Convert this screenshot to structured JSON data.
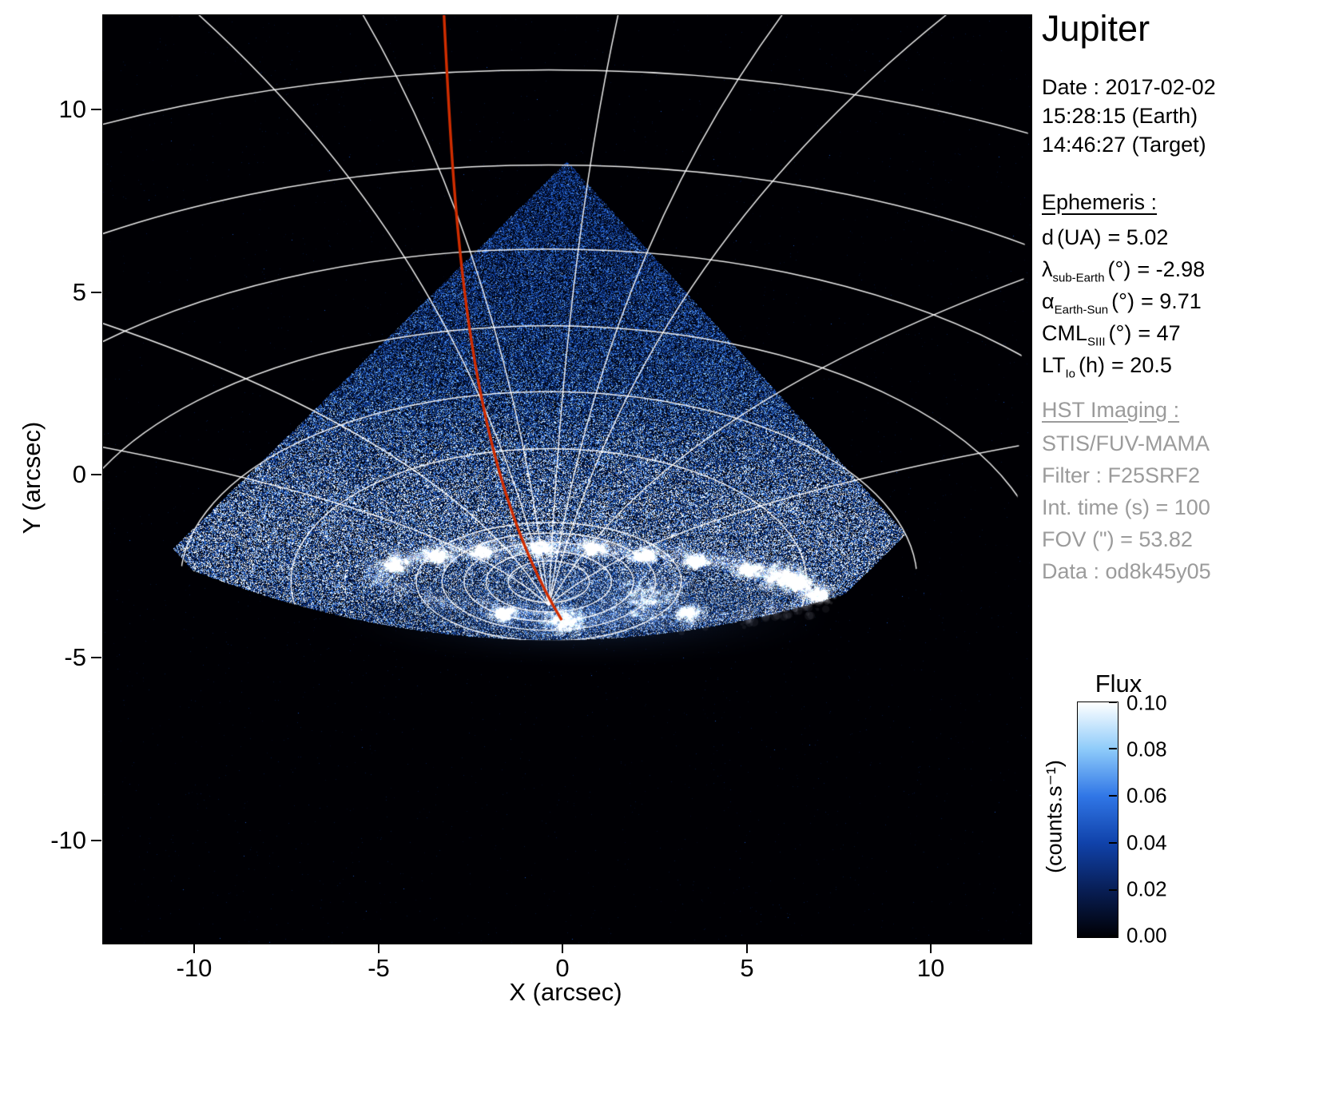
{
  "title": "Jupiter",
  "info": {
    "date_line": "Date : 2017-02-02",
    "time_earth": "15:28:15 (Earth)",
    "time_target": "14:46:27 (Target)",
    "ephemeris_heading": "Ephemeris :",
    "ephemeris": [
      {
        "symbol": "d",
        "sub": "",
        "unit": "(UA)",
        "value": "= 5.02"
      },
      {
        "symbol": "λ",
        "sub": "sub-Earth",
        "unit": "(°)",
        "value": "= -2.98"
      },
      {
        "symbol": "α",
        "sub": "Earth-Sun",
        "unit": "(°)",
        "value": "= 9.71"
      },
      {
        "symbol": "CML",
        "sub": "SIII",
        "unit": "(°)",
        "value": "= 47"
      },
      {
        "symbol": "LT",
        "sub": "Io",
        "unit": "(h)",
        "value": "= 20.5"
      }
    ],
    "hst_heading": "HST Imaging :",
    "hst_lines": [
      "STIS/FUV-MAMA",
      "Filter : F25SRF2",
      "Int. time (s) = 100",
      "FOV (\") = 53.82",
      "Data : od8k45y05"
    ]
  },
  "chart_data": {
    "type": "heatmap",
    "title": "Jupiter",
    "xlabel": "X (arcsec)",
    "ylabel": "Y (arcsec)",
    "xlim": [
      -12.5,
      12.7
    ],
    "ylim": [
      -12.8,
      12.6
    ],
    "x_ticks": [
      "-10",
      "-5",
      "0",
      "5",
      "10"
    ],
    "y_ticks": [
      "10",
      "5",
      "0",
      "-5",
      "-10"
    ],
    "x_tick_values": [
      -10,
      -5,
      0,
      5,
      10
    ],
    "y_tick_values": [
      10,
      5,
      0,
      -5,
      -10
    ],
    "grid": true,
    "legend": false,
    "colorbar": {
      "title": "Flux",
      "unit": "(counts.s⁻¹)",
      "tick_labels": [
        "0.10",
        "0.08",
        "0.06",
        "0.04",
        "0.02",
        "0.00"
      ],
      "vmin": 0.0,
      "vmax": 0.1,
      "cmap": [
        [
          0,
          [
            0,
            0,
            4
          ]
        ],
        [
          0.2,
          [
            8,
            30,
            85
          ]
        ],
        [
          0.4,
          [
            16,
            66,
            170
          ]
        ],
        [
          0.6,
          [
            48,
            118,
            230
          ]
        ],
        [
          0.8,
          [
            142,
            203,
            250
          ]
        ],
        [
          1,
          [
            255,
            255,
            255
          ]
        ]
      ]
    },
    "annotations": {
      "red_track_color": "#d02d00",
      "grid_color": "#ffffff",
      "description": "HST STIS FUV image of Jupiter north polar region: noisy blue diamond-shaped MAMA field of view, bright white auroral oval near the limb, white planetocentric lat/lon grid, red Io flux-tube track"
    },
    "features": {
      "cone": {
        "top": [
          0.1,
          8.6
        ],
        "right": [
          9.3,
          -1.6
        ],
        "bottom": [
          -1.4,
          -12.2
        ],
        "left": [
          -10.6,
          -2.0
        ]
      },
      "limb": {
        "y0": -4.5,
        "x0": -0.3,
        "curv": 0.02
      },
      "aurora": {
        "cx": 0.9,
        "cy": -2.95,
        "rx": 5.9,
        "ry": 0.95,
        "rot": -3
      },
      "clumps": [
        [
          -4.55,
          -2.45
        ],
        [
          -3.4,
          -2.2
        ],
        [
          -2.2,
          -2.1
        ],
        [
          -0.6,
          -2.0
        ],
        [
          0.8,
          -2.0
        ],
        [
          2.2,
          -2.2
        ],
        [
          3.6,
          -2.35
        ],
        [
          5.0,
          -2.6
        ],
        [
          6.4,
          -2.95
        ],
        [
          6.9,
          -3.25
        ],
        [
          2.3,
          -3.3,
          0.45
        ],
        [
          0.0,
          -3.95,
          0.3
        ],
        [
          -1.6,
          -3.8
        ],
        [
          3.4,
          -3.75
        ],
        [
          5.9,
          -2.8,
          0.3
        ]
      ],
      "pole": [
        -0.4,
        -3.55
      ],
      "grid_center": [
        -0.4,
        -2.9
      ],
      "parallels": [
        [
          1.1,
          0.57
        ],
        [
          1.7,
          0.83
        ],
        [
          2.3,
          1.08
        ],
        [
          2.9,
          1.33
        ],
        [
          3.6,
          1.62
        ],
        [
          7,
          3.64
        ],
        [
          10,
          5.2
        ],
        [
          13.5,
          7.0
        ],
        [
          17.5,
          9.1
        ],
        [
          22,
          11.4
        ],
        [
          27,
          14.0
        ]
      ],
      "meridian_ends": [
        [
          -12.6,
          0.8
        ],
        [
          -12.6,
          4.2
        ],
        [
          -10.0,
          12.7
        ],
        [
          -5.5,
          12.7
        ],
        [
          1.5,
          12.7
        ],
        [
          6.0,
          12.7
        ],
        [
          10.5,
          12.7
        ],
        [
          12.8,
          5.5
        ],
        [
          12.8,
          0.9
        ]
      ],
      "red_track": {
        "start": [
          -3.25,
          12.7
        ],
        "c1": [
          -2.95,
          6.5
        ],
        "c2": [
          -2.6,
          0.3
        ],
        "end": [
          -0.05,
          -3.95
        ]
      }
    }
  }
}
